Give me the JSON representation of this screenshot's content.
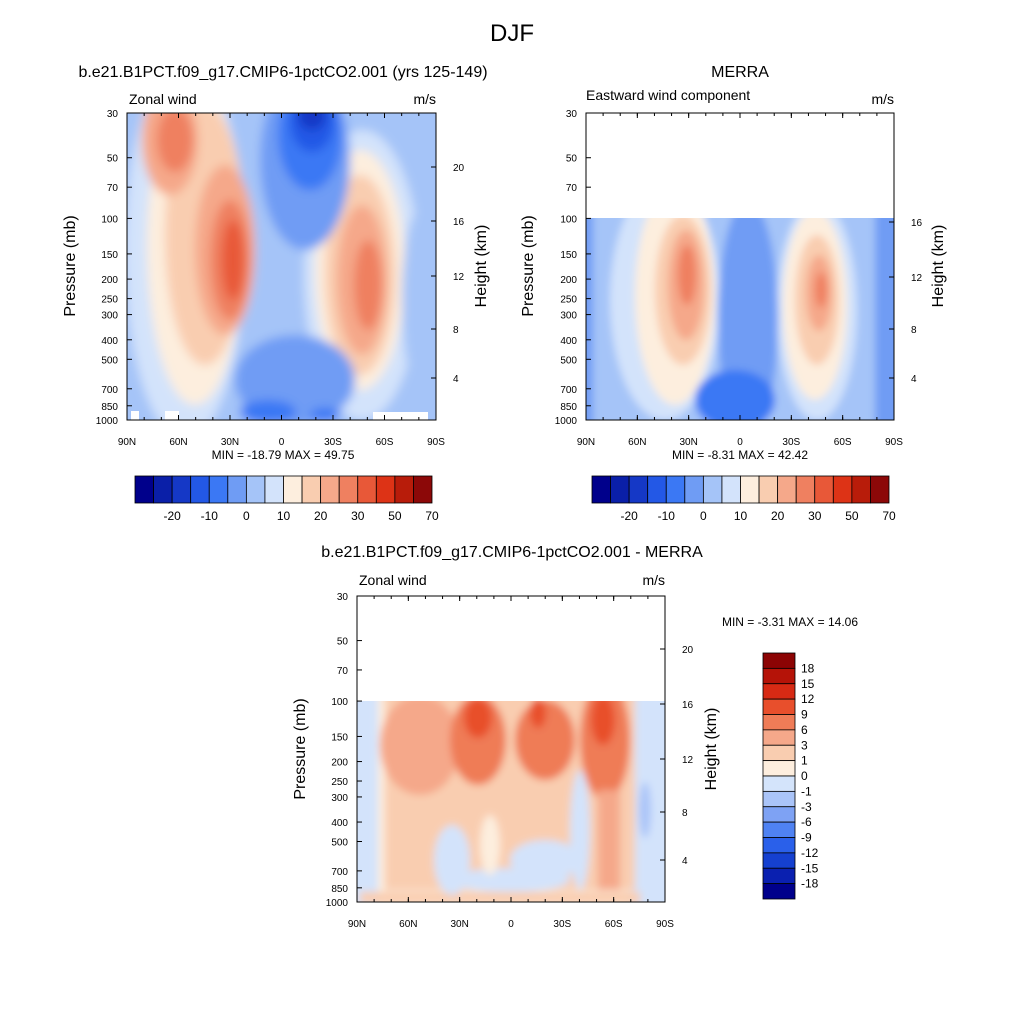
{
  "figure": {
    "title": "DJF",
    "colors": {
      "wind_palette": [
        "#00008b",
        "#0a1fa8",
        "#1538c6",
        "#2358e6",
        "#3b78f4",
        "#6f9cf4",
        "#a5c4f8",
        "#d3e3fb",
        "#fdeede",
        "#f9cdb0",
        "#f5a88a",
        "#ef8060",
        "#e85838",
        "#dd3316",
        "#b81c0a",
        "#8c0808"
      ],
      "diff_palette": [
        "#00008b",
        "#0a20b0",
        "#1540d0",
        "#2a60ea",
        "#4f82f2",
        "#7ea2f4",
        "#aac4f8",
        "#d4e4fb",
        "#fdeede",
        "#f9cdb0",
        "#f5a88a",
        "#ef7c57",
        "#e84f2c",
        "#d72a14",
        "#b51308",
        "#8c0404"
      ]
    }
  },
  "chart_data": [
    {
      "type": "heatmap",
      "title": "b.e21.B1PCT.f09_g17.CMIP6-1pctCO2.001 (yrs 125-149)",
      "left_string": "Zonal wind",
      "right_string": "m/s",
      "ylabel": "Pressure (mb)",
      "ylabel_right": "Height (km)",
      "x_ticks": [
        "90N",
        "60N",
        "30N",
        "0",
        "30S",
        "60S",
        "90S"
      ],
      "y_ticks": [
        "30",
        "50",
        "70",
        "100",
        "150",
        "200",
        "250",
        "300",
        "400",
        "500",
        "700",
        "850",
        "1000"
      ],
      "right_ticks": [
        "20",
        "16",
        "12",
        "8",
        "4"
      ],
      "x_range": [
        90,
        -90
      ],
      "y_range_mb": [
        1000,
        30
      ],
      "y_scale": "log",
      "min_max_text": "MIN = -18.79  MAX = 49.75",
      "min": -18.79,
      "max": 49.75,
      "data_top_mb": 30,
      "colorbar_labels": [
        "-20",
        "-10",
        "0",
        "10",
        "20",
        "30",
        "50",
        "70"
      ],
      "colorbar_levels": [
        -25,
        -20,
        -15,
        -10,
        -5,
        0,
        5,
        10,
        15,
        20,
        25,
        30,
        40,
        50,
        60,
        70
      ]
    },
    {
      "type": "heatmap",
      "title": "MERRA",
      "left_string": "Eastward wind component",
      "right_string": "m/s",
      "ylabel": "Pressure (mb)",
      "ylabel_right": "Height (km)",
      "x_ticks": [
        "90N",
        "60N",
        "30N",
        "0",
        "30S",
        "60S",
        "90S"
      ],
      "y_ticks": [
        "30",
        "50",
        "70",
        "100",
        "150",
        "200",
        "250",
        "300",
        "400",
        "500",
        "700",
        "850",
        "1000"
      ],
      "right_ticks": [
        "16",
        "12",
        "8",
        "4"
      ],
      "x_range": [
        90,
        -90
      ],
      "y_range_mb": [
        1000,
        30
      ],
      "y_scale": "log",
      "min_max_text": "MIN =  -8.31  MAX =  42.42",
      "min": -8.31,
      "max": 42.42,
      "data_top_mb": 100,
      "colorbar_labels": [
        "-20",
        "-10",
        "0",
        "10",
        "20",
        "30",
        "50",
        "70"
      ],
      "colorbar_levels": [
        -25,
        -20,
        -15,
        -10,
        -5,
        0,
        5,
        10,
        15,
        20,
        25,
        30,
        40,
        50,
        60,
        70
      ]
    },
    {
      "type": "heatmap",
      "title": "b.e21.B1PCT.f09_g17.CMIP6-1pctCO2.001 - MERRA",
      "left_string": "Zonal wind",
      "right_string": "m/s",
      "ylabel": "Pressure (mb)",
      "ylabel_right": "Height (km)",
      "x_ticks": [
        "90N",
        "60N",
        "30N",
        "0",
        "30S",
        "60S",
        "90S"
      ],
      "y_ticks": [
        "30",
        "50",
        "70",
        "100",
        "150",
        "200",
        "250",
        "300",
        "400",
        "500",
        "700",
        "850",
        "1000"
      ],
      "right_ticks": [
        "20",
        "16",
        "12",
        "8",
        "4"
      ],
      "x_range": [
        90,
        -90
      ],
      "y_range_mb": [
        1000,
        30
      ],
      "y_scale": "log",
      "min_max_text": "MIN =  -3.31  MAX =  14.06",
      "min": -3.31,
      "max": 14.06,
      "data_top_mb": 100,
      "colorbar_labels": [
        "18",
        "15",
        "12",
        "9",
        "6",
        "3",
        "1",
        "0",
        "-1",
        "-3",
        "-6",
        "-9",
        "-12",
        "-15",
        "-18"
      ],
      "colorbar_levels": [
        -18,
        -15,
        -12,
        -9,
        -6,
        -3,
        -1,
        0,
        1,
        3,
        6,
        9,
        12,
        15,
        18
      ]
    }
  ]
}
